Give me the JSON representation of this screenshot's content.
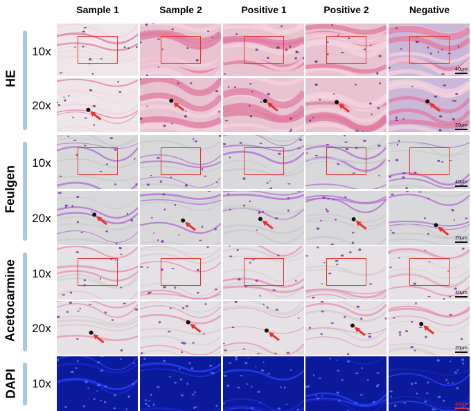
{
  "columns": [
    "Sample 1",
    "Sample 2",
    "Positive 1",
    "Positive 2",
    "Negative"
  ],
  "groups": [
    {
      "name": "HE",
      "magnifications": [
        "10x",
        "20x"
      ]
    },
    {
      "name": "Feulgen",
      "magnifications": [
        "10x",
        "20x"
      ]
    },
    {
      "name": "Acetocarmine",
      "magnifications": [
        "10x",
        "20x"
      ]
    },
    {
      "name": "DAPI",
      "magnifications": [
        "10x"
      ]
    }
  ],
  "scale_bars": {
    "he_10x": "40μm",
    "he_20x": "20μm",
    "feulgen_10x": "40μm",
    "feulgen_20x": "20μm",
    "aceto_10x": "40μm",
    "aceto_20x": "20μm",
    "dapi_10x": "40μm"
  },
  "colors": {
    "he_background": "#e8c3d0",
    "he_stain": "#e07aa0",
    "feulgen_background": "#d9d9dc",
    "feulgen_stain": "#b06ad0",
    "aceto_background": "#e6e1e4",
    "aceto_stain": "#e58eb0",
    "dapi_background": "#0a1a9a",
    "marker": "#e8302a",
    "group_bar": "#a9c8e4"
  }
}
